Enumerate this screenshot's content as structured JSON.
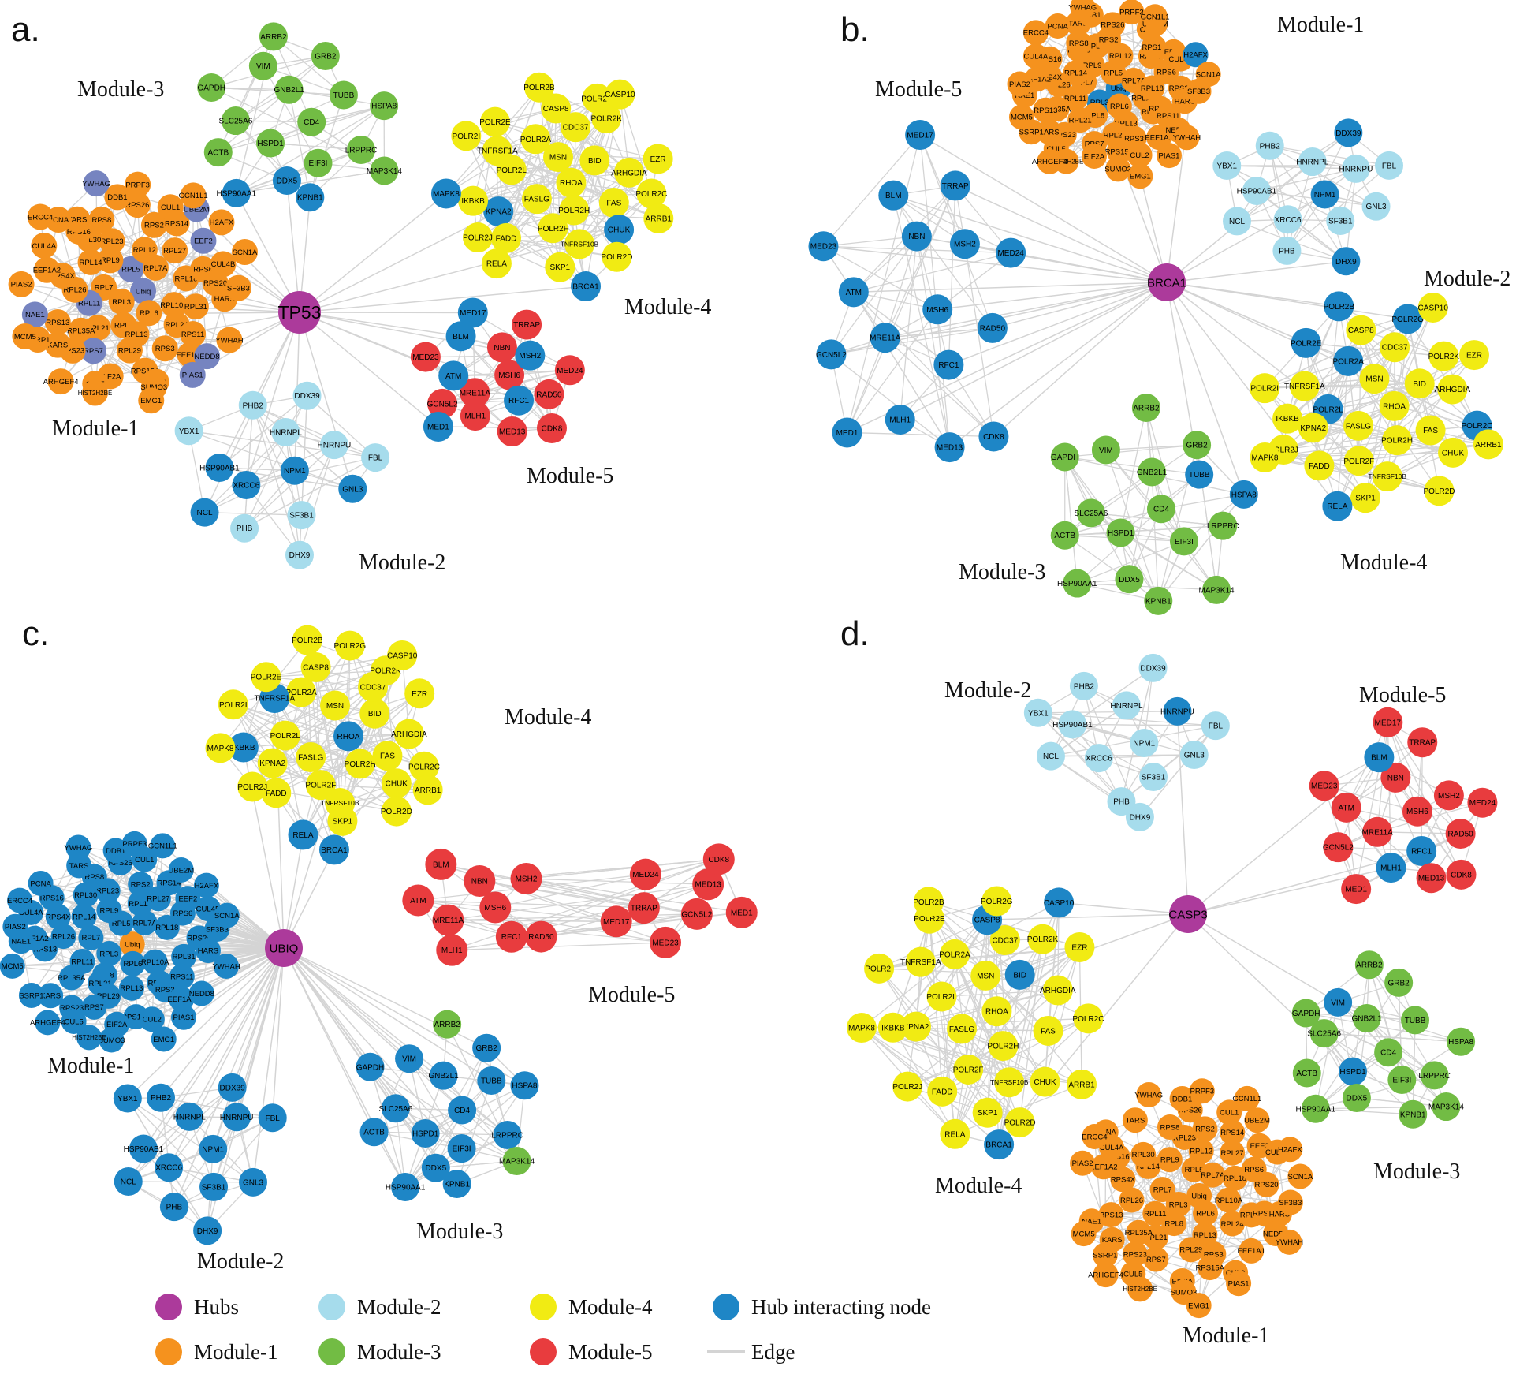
{
  "colors": {
    "hub": "#AC3A9B",
    "module1": "#F5921E",
    "module2": "#A6DCEC",
    "module3": "#72BC44",
    "module4": "#F1EB13",
    "module5": "#E83C3E",
    "interactor": "#1E86C6",
    "interactor_module1": "#7684C0",
    "edge": "#D4D4D4",
    "label": "#000000"
  },
  "gene_sets": {
    "module1": [
      "Ubiq",
      "RPL3",
      "RPL5",
      "RPL6",
      "RPL7",
      "RPL7A",
      "RPL8",
      "RPL9",
      "RPL10A",
      "RPL11",
      "RPL12",
      "RPL13",
      "RPL14",
      "RPL18",
      "RPL21",
      "RPL23",
      "RPL24",
      "RPL26",
      "RPL27",
      "RPL29",
      "RPL30",
      "RPL31",
      "RPL35A",
      "RPS2",
      "RPS3",
      "RPS4X",
      "RPS6",
      "RPS7",
      "RPS8",
      "RPS11",
      "RPS13",
      "RPS14",
      "RPS15A",
      "RPS16",
      "RPS20",
      "RPS23",
      "RPS26",
      "EEF1A1",
      "EEF1A2",
      "EEF2",
      "EIF2A",
      "TARS",
      "HARS",
      "KARS",
      "CUL1",
      "CUL2",
      "CUL4A",
      "CUL4B",
      "CUL5",
      "DDB1",
      "NEDD8",
      "NAE1",
      "UBE2M",
      "SUMO3",
      "PCNA",
      "SF3B3",
      "SSRP1",
      "PRPF3",
      "PIAS1",
      "PIAS2",
      "H2AFX",
      "HIST2H2BE",
      "YWHAG",
      "YWHAH",
      "MCM5",
      "GCN1L1",
      "EMG1",
      "ERCC4",
      "SCN1A",
      "ARHGEF4"
    ],
    "module2": [
      "NPM1",
      "XRCC6",
      "HNRNPL",
      "SF3B1",
      "HSP90AB1",
      "HNRNPU",
      "PHB",
      "PHB2",
      "GNL3",
      "NCL",
      "DDX39",
      "DHX9",
      "YBX1",
      "FBL"
    ],
    "module3": [
      "CD4",
      "HSPD1",
      "GNB2L1",
      "EIF3I",
      "SLC25A6",
      "TUBB",
      "DDX5",
      "VIM",
      "LRPPRC",
      "ACTB",
      "GRB2",
      "KPNB1",
      "GAPDH",
      "HSPA8",
      "HSP90AA1",
      "ARRB2",
      "MAP3K14"
    ],
    "module4": [
      "RHOA",
      "FASLG",
      "MSN",
      "POLR2H",
      "POLR2L",
      "BID",
      "POLR2F",
      "POLR2A",
      "FAS",
      "KPNA2",
      "CDC37",
      "TNFRSF10B",
      "TNFRSF1A",
      "ARHGDIA",
      "FADD",
      "CASP8",
      "CHUK",
      "IKBKB",
      "POLR2K",
      "SKP1",
      "POLR2E",
      "POLR2C",
      "POLR2J",
      "POLR2G",
      "POLR2D",
      "POLR2I",
      "EZR",
      "RELA",
      "POLR2B",
      "ARRB1",
      "MAPK8",
      "CASP10",
      "BRCA1"
    ],
    "module5": [
      "MSH6",
      "MRE11A",
      "NBN",
      "RFC1",
      "ATM",
      "MSH2",
      "MLH1",
      "BLM",
      "RAD50",
      "GCN5L2",
      "TRRAP",
      "MED13",
      "MED23",
      "MED24",
      "MED1",
      "MED17",
      "CDK8"
    ]
  },
  "panels": [
    {
      "id": "a",
      "letter": "a.",
      "hub": {
        "label": "TP53"
      },
      "modules": [
        {
          "key": "m1",
          "label": "Module-1",
          "genes": "module1",
          "interactors": [
            "RPL5",
            "RPL11",
            "EEF2",
            "UBE2M",
            "NEDD8",
            "RPS7",
            "NAE1",
            "PIAS1",
            "YWHAG",
            "Ubiq"
          ],
          "interactor_color": "interactor_module1"
        },
        {
          "key": "m2",
          "label": "Module-2",
          "genes": "module2",
          "interactors": [
            "XRCC6",
            "NPM1",
            "HSP90AB1",
            "GNL3",
            "NCL"
          ]
        },
        {
          "key": "m3",
          "label": "Module-3",
          "genes": "module3",
          "interactors": [
            "DDX5",
            "KPNB1",
            "HSP90AA1"
          ]
        },
        {
          "key": "m4",
          "label": "Module-4",
          "genes": "module4",
          "interactors": [
            "KPNA2",
            "CHUK",
            "MAPK8",
            "BRCA1"
          ]
        },
        {
          "key": "m5",
          "label": "Module-5",
          "genes": "module5",
          "interactors": [
            "MSH2",
            "MED17",
            "MED1",
            "ATM",
            "BLM",
            "RFC1"
          ]
        }
      ]
    },
    {
      "id": "b",
      "letter": "b.",
      "hub": {
        "label": "BRCA1"
      },
      "modules": [
        {
          "key": "m1",
          "label": "Module-1",
          "genes": "module1",
          "interactors": [
            "H2AFX",
            "Ubiq",
            "RPL3"
          ]
        },
        {
          "key": "m2",
          "label": "Module-2",
          "genes": "module2",
          "interactors": [
            "NPM1",
            "DHX9",
            "DDX39"
          ]
        },
        {
          "key": "m3",
          "label": "Module-3",
          "genes": "module3",
          "interactors": [
            "TUBB",
            "HSPA8"
          ]
        },
        {
          "key": "m4",
          "label": "Module-4",
          "genes": "module4",
          "exclude": [
            "BRCA1"
          ],
          "interactors": [
            "POLR2A",
            "POLR2B",
            "POLR2C",
            "POLR2E",
            "POLR2G",
            "POLR2L",
            "RELA"
          ]
        },
        {
          "key": "m5",
          "label": "Module-5",
          "genes": "module5",
          "interactors": "all"
        }
      ]
    },
    {
      "id": "c",
      "letter": "c.",
      "hub": {
        "label": "UBIQ"
      },
      "modules": [
        {
          "key": "m1",
          "label": "Module-1",
          "genes": "module1",
          "interactors": "all",
          "interactor_except": [
            "Ubiq"
          ],
          "color_overrides": {
            "Ubiq": "module1"
          }
        },
        {
          "key": "m2",
          "label": "Module-2",
          "genes": "module2",
          "interactors": "all"
        },
        {
          "key": "m3",
          "label": "Module-3",
          "genes": "module3",
          "interactors": "all",
          "interactor_except": [
            "ARRB2",
            "MAP3K14"
          ]
        },
        {
          "key": "m4",
          "label": "Module-4",
          "genes": "module4",
          "interactors": [
            "BRCA1",
            "IKBKB",
            "TNFRSF1A",
            "RELA",
            "RHOA"
          ]
        },
        {
          "key": "m5",
          "label": "Module-5",
          "genes": "module5",
          "interactors": []
        }
      ]
    },
    {
      "id": "d",
      "letter": "d.",
      "hub": {
        "label": "CASP3"
      },
      "modules": [
        {
          "key": "m1",
          "label": "Module-1",
          "genes": "module1",
          "interactors": []
        },
        {
          "key": "m2",
          "label": "Module-2",
          "genes": "module2",
          "interactors": [
            "HNRNPU"
          ]
        },
        {
          "key": "m3",
          "label": "Module-3",
          "genes": "module3",
          "interactors": [
            "VIM",
            "HSPD1"
          ]
        },
        {
          "key": "m4",
          "label": "Module-4",
          "genes": "module4",
          "interactors": [
            "BRCA1",
            "CASP10",
            "CASP8",
            "BID"
          ]
        },
        {
          "key": "m5",
          "label": "Module-5",
          "genes": "module5",
          "interactors": [
            "RFC1",
            "MLH1",
            "BLM"
          ]
        }
      ]
    }
  ],
  "legend": {
    "rows": [
      [
        {
          "swatch": "hub",
          "label": "Hubs"
        },
        {
          "swatch": "module2",
          "label": "Module-2"
        },
        {
          "swatch": "module4",
          "label": "Module-4"
        },
        {
          "swatch": "interactor",
          "label": "Hub interacting node"
        }
      ],
      [
        {
          "swatch": "module1",
          "label": "Module-1"
        },
        {
          "swatch": "module3",
          "label": "Module-3"
        },
        {
          "swatch": "module5",
          "label": "Module-5"
        },
        {
          "swatch": "edge",
          "label": "Edge"
        }
      ]
    ]
  }
}
